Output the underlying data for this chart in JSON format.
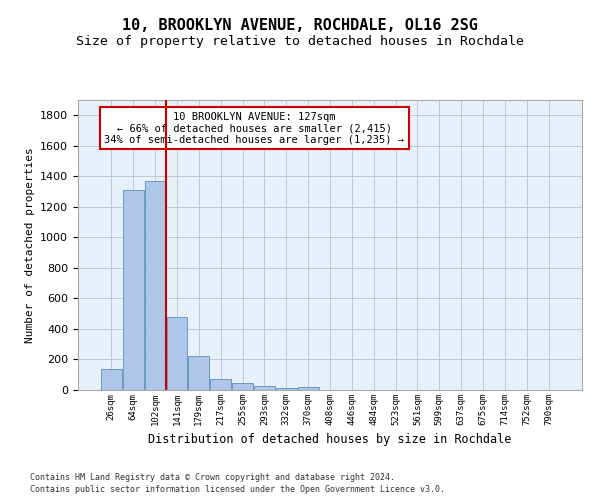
{
  "title1": "10, BROOKLYN AVENUE, ROCHDALE, OL16 2SG",
  "title2": "Size of property relative to detached houses in Rochdale",
  "xlabel": "Distribution of detached houses by size in Rochdale",
  "ylabel": "Number of detached properties",
  "footer1": "Contains HM Land Registry data © Crown copyright and database right 2024.",
  "footer2": "Contains public sector information licensed under the Open Government Licence v3.0.",
  "annotation_line1": "10 BROOKLYN AVENUE: 127sqm",
  "annotation_line2": "← 66% of detached houses are smaller (2,415)",
  "annotation_line3": "34% of semi-detached houses are larger (1,235) →",
  "bar_color": "#aec6e8",
  "bar_edge_color": "#5a8fc0",
  "bar_values": [
    140,
    1310,
    1370,
    480,
    225,
    75,
    45,
    28,
    15,
    20,
    0,
    0,
    0,
    0,
    0,
    0,
    0,
    0,
    0,
    0,
    0
  ],
  "bin_labels": [
    "26sqm",
    "64sqm",
    "102sqm",
    "141sqm",
    "179sqm",
    "217sqm",
    "255sqm",
    "293sqm",
    "332sqm",
    "370sqm",
    "408sqm",
    "446sqm",
    "484sqm",
    "523sqm",
    "561sqm",
    "599sqm",
    "637sqm",
    "675sqm",
    "714sqm",
    "752sqm",
    "790sqm"
  ],
  "ylim": [
    0,
    1900
  ],
  "yticks": [
    0,
    200,
    400,
    600,
    800,
    1000,
    1200,
    1400,
    1600,
    1800
  ],
  "vline_color": "#cc0000",
  "bg_color": "#e8f0fa",
  "grid_color": "#c0c8d8",
  "annotation_box_color": "#cc0000",
  "title1_fontsize": 11,
  "title2_fontsize": 9.5
}
